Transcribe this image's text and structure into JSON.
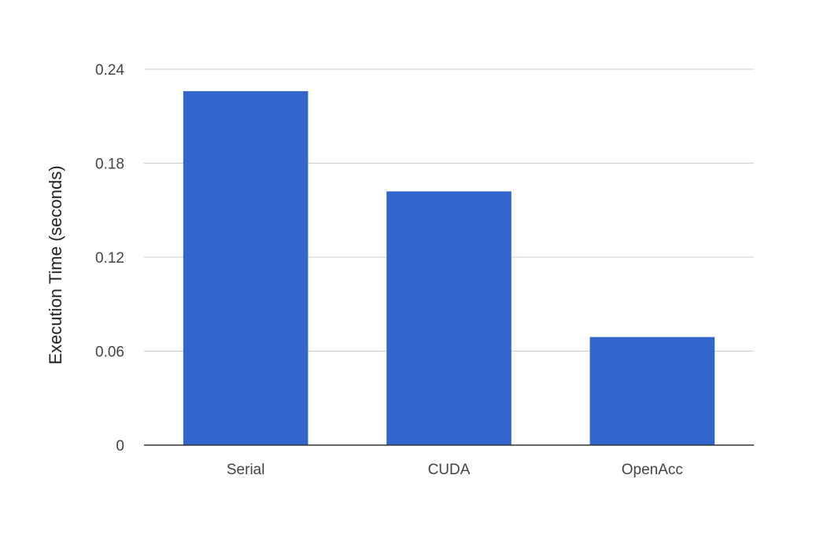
{
  "chart_data": {
    "type": "bar",
    "title": "",
    "xlabel": "",
    "ylabel": "Execution Time (seconds)",
    "categories": [
      "Serial",
      "CUDA",
      "OpenAcc"
    ],
    "series": [
      {
        "values": [
          0.226,
          0.162,
          0.069
        ]
      }
    ],
    "ylim": [
      0,
      0.24
    ],
    "yticks": [
      0,
      0.06,
      0.12,
      0.18,
      0.24
    ],
    "ytick_labels": [
      "0",
      "0.06",
      "0.12",
      "0.18",
      "0.24"
    ],
    "bar_color": "#3366cc",
    "grid": true,
    "legend": "none"
  }
}
